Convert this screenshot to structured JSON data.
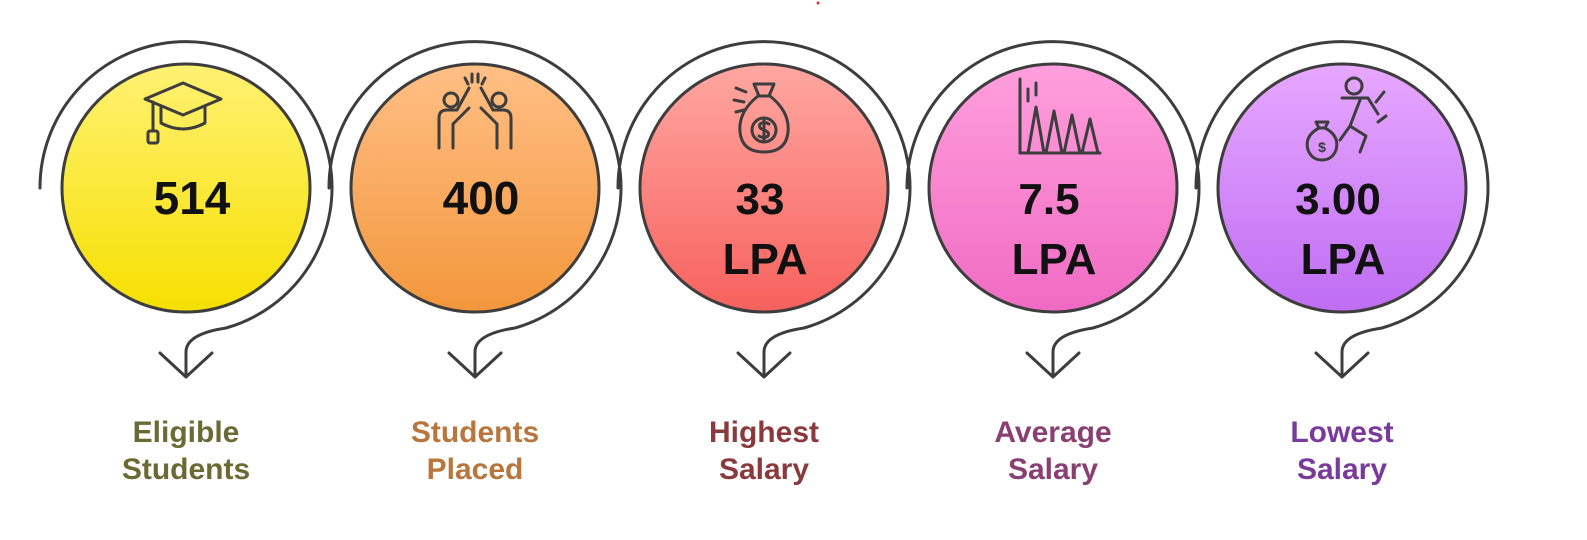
{
  "items": [
    {
      "id": "eligible",
      "value_line1": "514",
      "value_line2": "",
      "label_line1": "Eligible",
      "label_line2": "Students",
      "icon": "graduation-cap-icon",
      "fill_top": "#fff173",
      "fill_bottom": "#f6e000",
      "label_color": "#6b6a34"
    },
    {
      "id": "placed",
      "value_line1": "400",
      "value_line2": "",
      "label_line1": "Students",
      "label_line2": "Placed",
      "icon": "high-five-icon",
      "fill_top": "#ffbf85",
      "fill_bottom": "#f3973c",
      "label_color": "#b8763c"
    },
    {
      "id": "highest",
      "value_line1": "33",
      "value_line2": "LPA",
      "label_line1": "Highest",
      "label_line2": "Salary",
      "icon": "money-bag-icon",
      "fill_top": "#ffa7a1",
      "fill_bottom": "#f7615d",
      "label_color": "#8a3a3c"
    },
    {
      "id": "average",
      "value_line1": "7.5",
      "value_line2": "LPA",
      "label_line1": "Average",
      "label_line2": "Salary",
      "icon": "peaks-chart-icon",
      "fill_top": "#ff9fdc",
      "fill_bottom": "#f06bc3",
      "label_color": "#8a3f73"
    },
    {
      "id": "lowest",
      "value_line1": "3.00",
      "value_line2": "LPA",
      "label_line1": "Lowest",
      "label_line2": "Salary",
      "icon": "running-money-icon",
      "fill_top": "#e7a8ff",
      "fill_bottom": "#bf6df3",
      "label_color": "#7a3a9c"
    }
  ],
  "ring_color": "#3d3d3d"
}
